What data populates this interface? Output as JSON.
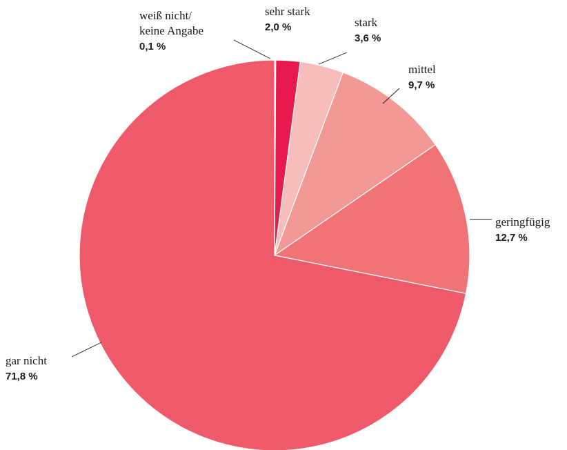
{
  "chart_data": {
    "type": "pie",
    "start": "top",
    "direction": "clockwise",
    "legend": "none",
    "slices": [
      {
        "name": "weiß nicht/ keine Angabe",
        "label_lines": [
          "weiß nicht/",
          "keine Angabe"
        ],
        "value": 0.1,
        "value_label": "0,1 %",
        "color": "#F7D3D1"
      },
      {
        "name": "sehr stark",
        "label_lines": [
          "sehr stark"
        ],
        "value": 2.0,
        "value_label": "2,0 %",
        "color": "#E8194E"
      },
      {
        "name": "stark",
        "label_lines": [
          "stark"
        ],
        "value": 3.6,
        "value_label": "3,6 %",
        "color": "#F7BDBA"
      },
      {
        "name": "mittel",
        "label_lines": [
          "mittel"
        ],
        "value": 9.7,
        "value_label": "9,7 %",
        "color": "#F39995"
      },
      {
        "name": "geringfügig",
        "label_lines": [
          "geringfügig"
        ],
        "value": 12.7,
        "value_label": "12,7 %",
        "color": "#F07476"
      },
      {
        "name": "gar nicht",
        "label_lines": [
          "gar nicht"
        ],
        "value": 71.8,
        "value_label": "71,8 %",
        "color": "#EF5A6A"
      }
    ]
  }
}
